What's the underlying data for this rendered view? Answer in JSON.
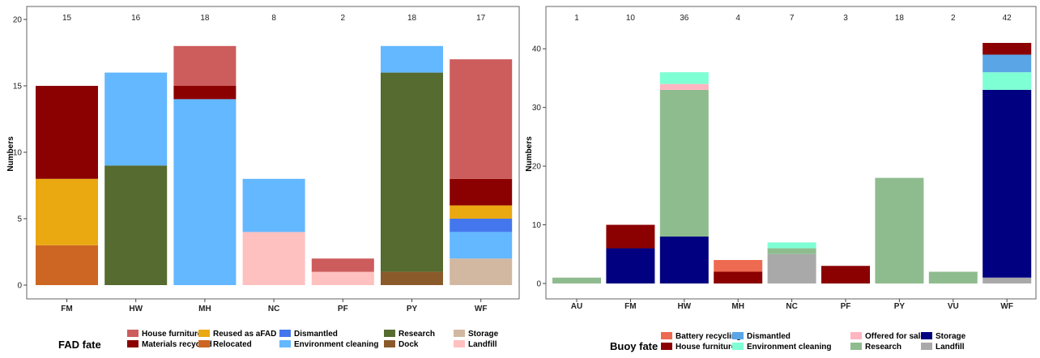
{
  "chart_data": [
    {
      "type": "bar",
      "stacked": true,
      "categories": [
        "FM",
        "HW",
        "MH",
        "NC",
        "PF",
        "PY",
        "WF"
      ],
      "totals": [
        "15",
        "16",
        "18",
        "8",
        "2",
        "18",
        "17"
      ],
      "ylabel": "Numbers",
      "xlabel": "",
      "ylim": [
        0,
        20
      ],
      "yticks": [
        0,
        5,
        10,
        15,
        20
      ],
      "grid": false,
      "legend_position": "bottom",
      "legend_title": "FAD fate",
      "legend": [
        [
          "House furniture",
          "Materials recycled"
        ],
        [
          "Reused as aFAD",
          "Relocated"
        ],
        [
          "Dismantled",
          "Environment cleaning"
        ],
        [
          "Research",
          "Dock"
        ],
        [
          "Storage",
          "Landfill"
        ]
      ],
      "colors": {
        "House furniture": "#cd5c5c",
        "Materials recycled": "#8b0000",
        "Reused as aFAD": "#eaa811",
        "Relocated": "#cc6622",
        "Dismantled": "#4477ee",
        "Environment cleaning": "#63b8ff",
        "Research": "#556b2f",
        "Dock": "#8b5a2b",
        "Storage": "#d2b8a0",
        "Landfill": "#ffc0c0"
      },
      "series": [
        {
          "name": "Relocated",
          "values": [
            3,
            0,
            0,
            0,
            0,
            0,
            0
          ]
        },
        {
          "name": "Reused as aFAD",
          "values": [
            5,
            0,
            0,
            0,
            0,
            0,
            1
          ]
        },
        {
          "name": "Materials recycled",
          "values": [
            7,
            0,
            1,
            0,
            0,
            0,
            2
          ]
        },
        {
          "name": "Research",
          "values": [
            0,
            9,
            0,
            0,
            0,
            15,
            0
          ]
        },
        {
          "name": "Environment cleaning",
          "values": [
            0,
            7,
            14,
            4,
            0,
            2,
            2
          ]
        },
        {
          "name": "House furniture",
          "values": [
            0,
            0,
            3,
            0,
            1,
            0,
            9
          ]
        },
        {
          "name": "Landfill",
          "values": [
            0,
            0,
            0,
            4,
            1,
            0,
            0
          ]
        },
        {
          "name": "Dock",
          "values": [
            0,
            0,
            0,
            0,
            0,
            1,
            0
          ]
        },
        {
          "name": "Storage",
          "values": [
            0,
            0,
            0,
            0,
            0,
            0,
            2
          ]
        },
        {
          "name": "Dismantled",
          "values": [
            0,
            0,
            0,
            0,
            0,
            0,
            1
          ]
        }
      ],
      "stack_order": [
        [
          "Relocated",
          "Reused as aFAD",
          "Materials recycled"
        ],
        [
          "Research",
          "Environment cleaning"
        ],
        [
          "Environment cleaning",
          "Materials recycled",
          "House furniture"
        ],
        [
          "Landfill",
          "Environment cleaning"
        ],
        [
          "Landfill",
          "House furniture"
        ],
        [
          "Dock",
          "Research",
          "Environment cleaning"
        ],
        [
          "Storage",
          "Environment cleaning",
          "Dismantled",
          "Reused as aFAD",
          "Materials recycled",
          "House furniture"
        ]
      ]
    },
    {
      "type": "bar",
      "stacked": true,
      "categories": [
        "AU",
        "FM",
        "HW",
        "MH",
        "NC",
        "PF",
        "PY",
        "VU",
        "WF"
      ],
      "totals": [
        "1",
        "10",
        "36",
        "4",
        "7",
        "3",
        "18",
        "2",
        "42"
      ],
      "ylabel": "Numbers",
      "xlabel": "",
      "ylim": [
        0,
        45
      ],
      "yticks": [
        0,
        10,
        20,
        30,
        40
      ],
      "grid": false,
      "legend_position": "bottom",
      "legend_title": "Buoy fate",
      "legend": [
        [
          "Battery recycling",
          "House furniture"
        ],
        [
          "Dismantled",
          "Environment cleaning"
        ],
        [
          "Offered for sale",
          "Research"
        ],
        [
          "Storage",
          "Landfill"
        ]
      ],
      "colors": {
        "Battery recycling": "#ee6a50",
        "House furniture": "#8b0000",
        "Dismantled": "#5aa5e6",
        "Environment cleaning": "#7fffd4",
        "Offered for sale": "#ffb6c1",
        "Research": "#8fbc8f",
        "Storage": "#000080",
        "Landfill": "#a9a9a9"
      },
      "series": [
        {
          "name": "Research",
          "values": [
            1,
            0,
            25,
            0,
            1,
            0,
            18,
            2,
            0
          ]
        },
        {
          "name": "Storage",
          "values": [
            0,
            6,
            8,
            0,
            0,
            0,
            0,
            0,
            32
          ]
        },
        {
          "name": "House furniture",
          "values": [
            0,
            4,
            0,
            2,
            0,
            3,
            0,
            0,
            2
          ]
        },
        {
          "name": "Offered for sale",
          "values": [
            0,
            0,
            1,
            0,
            0,
            0,
            0,
            0,
            0
          ]
        },
        {
          "name": "Environment cleaning",
          "values": [
            0,
            0,
            2,
            0,
            1,
            0,
            0,
            0,
            3
          ]
        },
        {
          "name": "Battery recycling",
          "values": [
            0,
            0,
            0,
            2,
            0,
            0,
            0,
            0,
            0
          ]
        },
        {
          "name": "Landfill",
          "values": [
            0,
            0,
            0,
            0,
            5,
            0,
            0,
            0,
            1
          ]
        },
        {
          "name": "Dismantled",
          "values": [
            0,
            0,
            0,
            0,
            0,
            0,
            0,
            0,
            3
          ]
        }
      ],
      "stack_order": [
        [
          "Research"
        ],
        [
          "Storage",
          "House furniture"
        ],
        [
          "Storage",
          "Research",
          "Offered for sale",
          "Environment cleaning"
        ],
        [
          "House furniture",
          "Battery recycling"
        ],
        [
          "Landfill",
          "Research",
          "Environment cleaning"
        ],
        [
          "House furniture"
        ],
        [
          "Research"
        ],
        [
          "Research"
        ],
        [
          "Landfill",
          "Storage",
          "Environment cleaning",
          "Dismantled",
          "House furniture"
        ]
      ]
    }
  ]
}
